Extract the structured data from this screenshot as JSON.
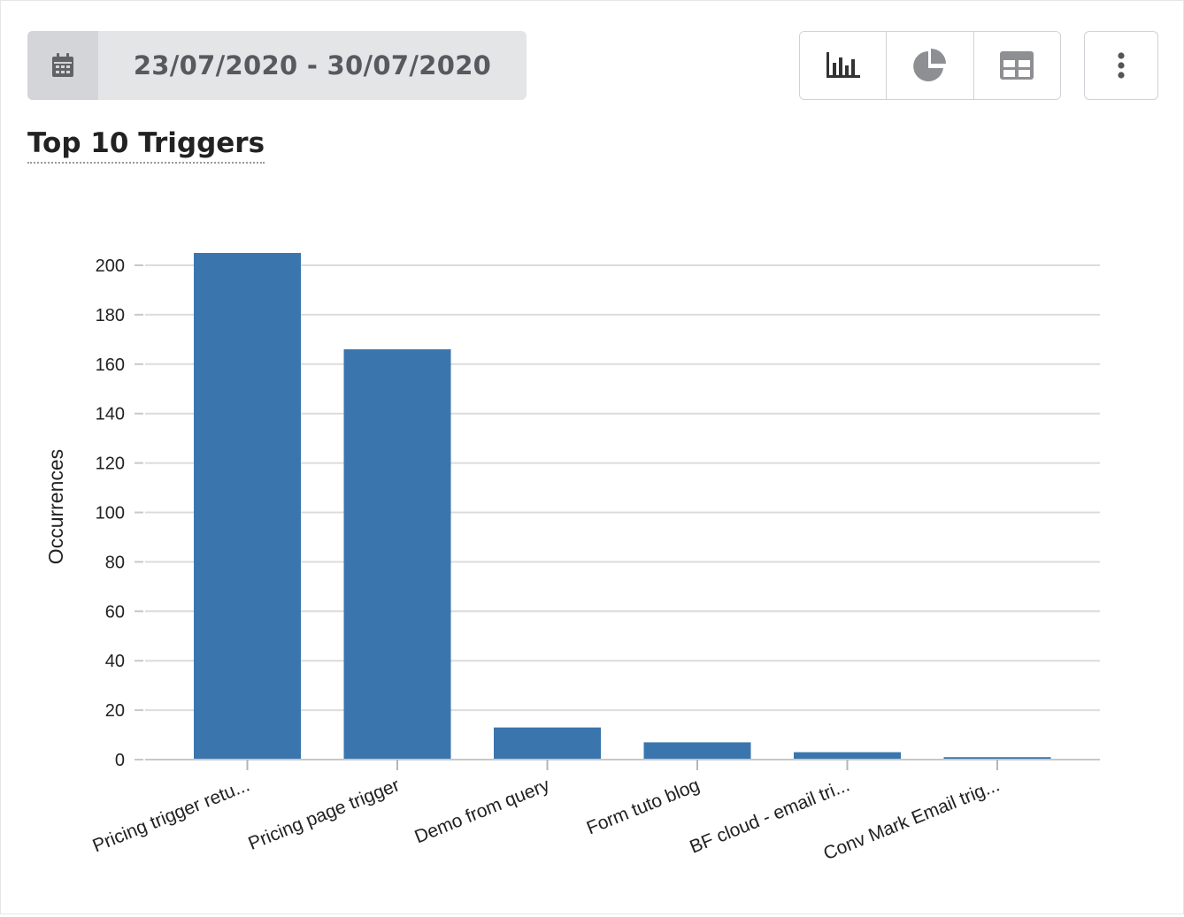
{
  "toolbar": {
    "date_range": "23/07/2020 - 30/07/2020",
    "date_icon": "calendar-icon",
    "views": [
      {
        "icon": "bar-chart-icon",
        "active": true
      },
      {
        "icon": "pie-chart-icon",
        "active": false
      },
      {
        "icon": "table-icon",
        "active": false
      }
    ],
    "more_icon": "more-vertical-icon"
  },
  "colors": {
    "bar": "#3a76ad",
    "grid": "#dcdcdc",
    "icon_active": "#333333",
    "icon_inactive": "#8d8f93"
  },
  "chart_data": {
    "type": "bar",
    "title": "Top 10 Triggers",
    "xlabel": "",
    "ylabel": "Occurrences",
    "ylim": [
      0,
      200
    ],
    "yticks": [
      0,
      20,
      40,
      60,
      80,
      100,
      120,
      140,
      160,
      180,
      200
    ],
    "grid": true,
    "categories": [
      "Pricing trigger retu...",
      "Pricing page trigger",
      "Demo from query",
      "Form tuto blog",
      "BF cloud - email tri...",
      "Conv Mark Email trig..."
    ],
    "values": [
      205,
      166,
      13,
      7,
      3,
      1
    ]
  }
}
